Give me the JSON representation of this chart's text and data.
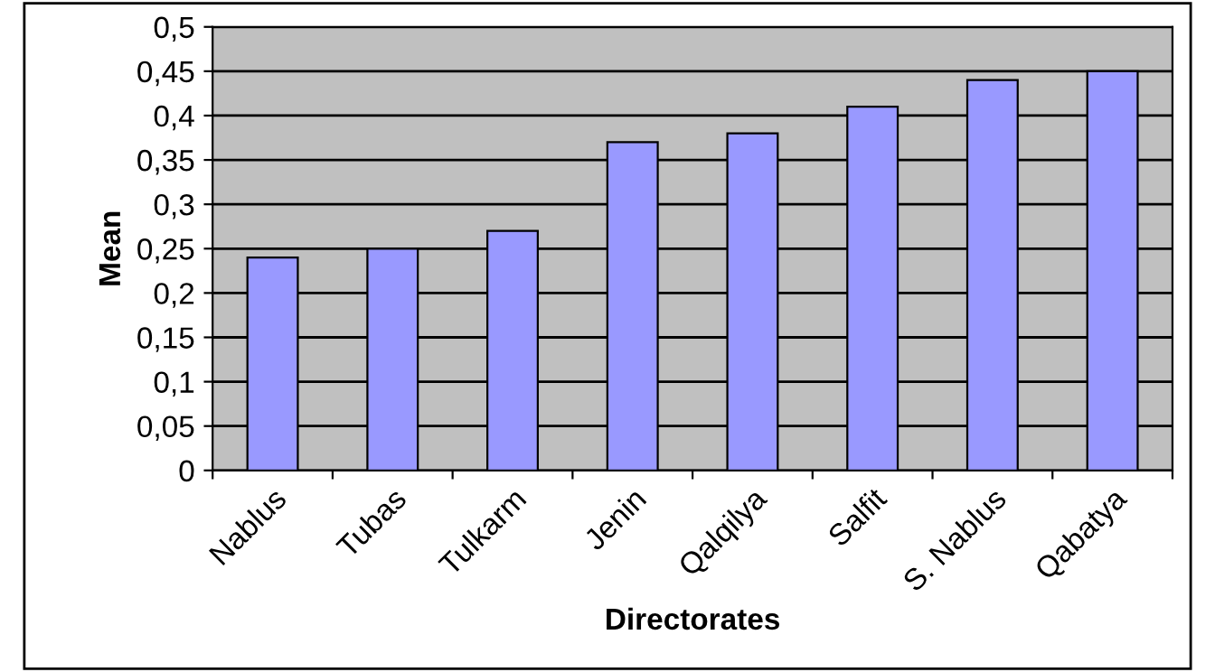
{
  "chart_data": {
    "type": "bar",
    "xlabel": "Directorates",
    "ylabel": "Mean",
    "categories": [
      "Nablus",
      "Tubas",
      "Tulkarm",
      "Jenin",
      "Qalqilya",
      "Salfit",
      "S. Nablus",
      "Qabatya"
    ],
    "values": [
      0.24,
      0.25,
      0.27,
      0.37,
      0.38,
      0.41,
      0.44,
      0.45
    ],
    "color": "#9999ff",
    "ylim": [
      0,
      0.5
    ],
    "yticks": [
      0,
      {
        "value": 0.05,
        "label": "0,05"
      },
      {
        "value": 0.1,
        "label": "0,1"
      },
      {
        "value": 0.15,
        "label": "0,15"
      },
      {
        "value": 0.2,
        "label": "0,2"
      },
      {
        "value": 0.25,
        "label": "0,25"
      },
      {
        "value": 0.3,
        "label": "0,3"
      },
      {
        "value": 0.35,
        "label": "0,35"
      },
      {
        "value": 0.4,
        "label": "0,4"
      },
      {
        "value": 0.45,
        "label": "0,45"
      },
      {
        "value": 0.5,
        "label": "0,5"
      }
    ],
    "grid": "y",
    "legend": false
  }
}
